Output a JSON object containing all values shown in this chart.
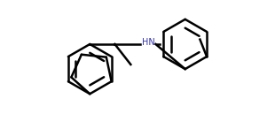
{
  "background_color": "#ffffff",
  "line_color": "#000000",
  "hn_color": "#3333aa",
  "line_width": 1.8,
  "fig_width": 3.1,
  "fig_height": 1.46,
  "dpi": 100
}
